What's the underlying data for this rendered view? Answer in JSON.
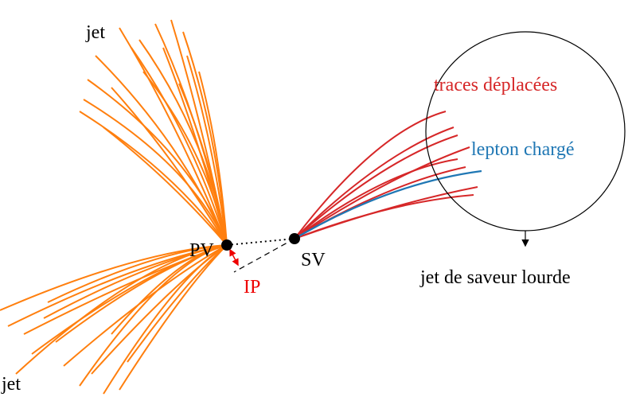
{
  "labels": {
    "jet_top": "jet",
    "jet_bottom": "jet",
    "pv": "PV",
    "sv": "SV",
    "ip": "IP",
    "displaced_tracks": "traces déplacées",
    "charged_lepton": "lepton chargé",
    "heavy_jet": "jet de saveur lourde"
  }
}
